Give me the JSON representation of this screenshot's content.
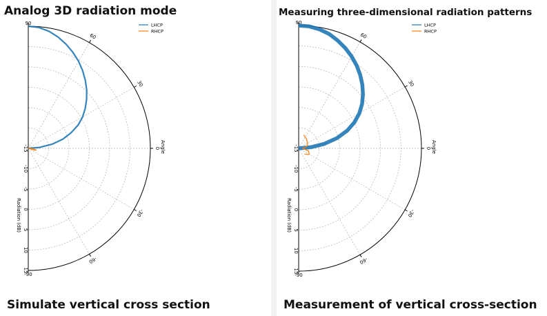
{
  "panels": [
    {
      "title": "Analog 3D radiation mode",
      "caption": "Simulate vertical cross section"
    },
    {
      "title": "Measuring three-dimensional radiation patterns",
      "caption": "Measurement of vertical cross-section"
    }
  ],
  "chart_data": [
    {
      "type": "line",
      "projection": "polar-half",
      "title": "Analog 3D radiation mode",
      "xlabel": "Angle",
      "ylabel": "Radiation (dB)",
      "angle_ticks": [
        "90",
        "60",
        "30",
        "0",
        "-30",
        "-60",
        "-90"
      ],
      "angle_tick_values": [
        90,
        60,
        30,
        0,
        -30,
        -60,
        -90
      ],
      "radial_ticks": [
        "-15",
        "-10",
        "-5",
        "0",
        "5",
        "10",
        "15"
      ],
      "radial_tick_values": [
        -15,
        -10,
        -5,
        0,
        5,
        10,
        15
      ],
      "rlim": [
        -15,
        15
      ],
      "grid": true,
      "legend": "top-right",
      "series": [
        {
          "name": "LHCP",
          "color": "#1f77b4",
          "angle": [
            90,
            85,
            80,
            75,
            70,
            65,
            60,
            55,
            50,
            45,
            40,
            35,
            30,
            25,
            20,
            15,
            10,
            5,
            0
          ],
          "r": [
            15,
            14.8,
            14.2,
            13.3,
            12.2,
            11.0,
            9.7,
            8.3,
            6.8,
            5.3,
            3.7,
            2.1,
            0.4,
            -1.5,
            -3.8,
            -6.2,
            -9.0,
            -12.2,
            -15
          ]
        },
        {
          "name": "RHCP",
          "color": "#ff7f0e",
          "angle": [
            0,
            -4,
            -8,
            -12,
            -16,
            -20
          ],
          "r": [
            -15,
            -14.4,
            -13.6,
            -13.0,
            -13.6,
            -15
          ]
        }
      ]
    },
    {
      "type": "line",
      "projection": "polar-half",
      "title": "Measuring three-dimensional radiation patterns",
      "xlabel": "Angle",
      "ylabel": "Radiation (dB)",
      "angle_ticks": [
        "90",
        "60",
        "30",
        "0",
        "-30",
        "-60",
        "-90"
      ],
      "angle_tick_values": [
        90,
        60,
        30,
        0,
        -30,
        -60,
        -90
      ],
      "radial_ticks": [
        "-15",
        "-10",
        "-5",
        "0",
        "5",
        "10",
        "15"
      ],
      "radial_tick_values": [
        -15,
        -10,
        -5,
        0,
        5,
        10,
        15
      ],
      "rlim": [
        -15,
        15
      ],
      "grid": true,
      "legend": "top-right",
      "series": [
        {
          "name": "LHCP",
          "color": "#1f77b4",
          "angle": [
            90,
            85,
            80,
            75,
            70,
            65,
            60,
            55,
            50,
            45,
            40,
            35,
            30,
            25,
            20,
            15,
            10,
            5,
            0
          ],
          "r": [
            15,
            14.9,
            14.5,
            13.9,
            13.0,
            12.0,
            10.9,
            9.7,
            8.4,
            7.0,
            5.5,
            3.9,
            2.1,
            0.0,
            -2.4,
            -5.3,
            -8.6,
            -12.0,
            -15
          ]
        },
        {
          "name": "RHCP",
          "color": "#ff7f0e",
          "angle": [
            70,
            50,
            30,
            15,
            0,
            -15,
            -30,
            -45
          ],
          "r": [
            -11.5,
            -12.0,
            -12.5,
            -12.8,
            -14.0,
            -12.5,
            -12.0,
            -13.0
          ]
        }
      ]
    }
  ]
}
